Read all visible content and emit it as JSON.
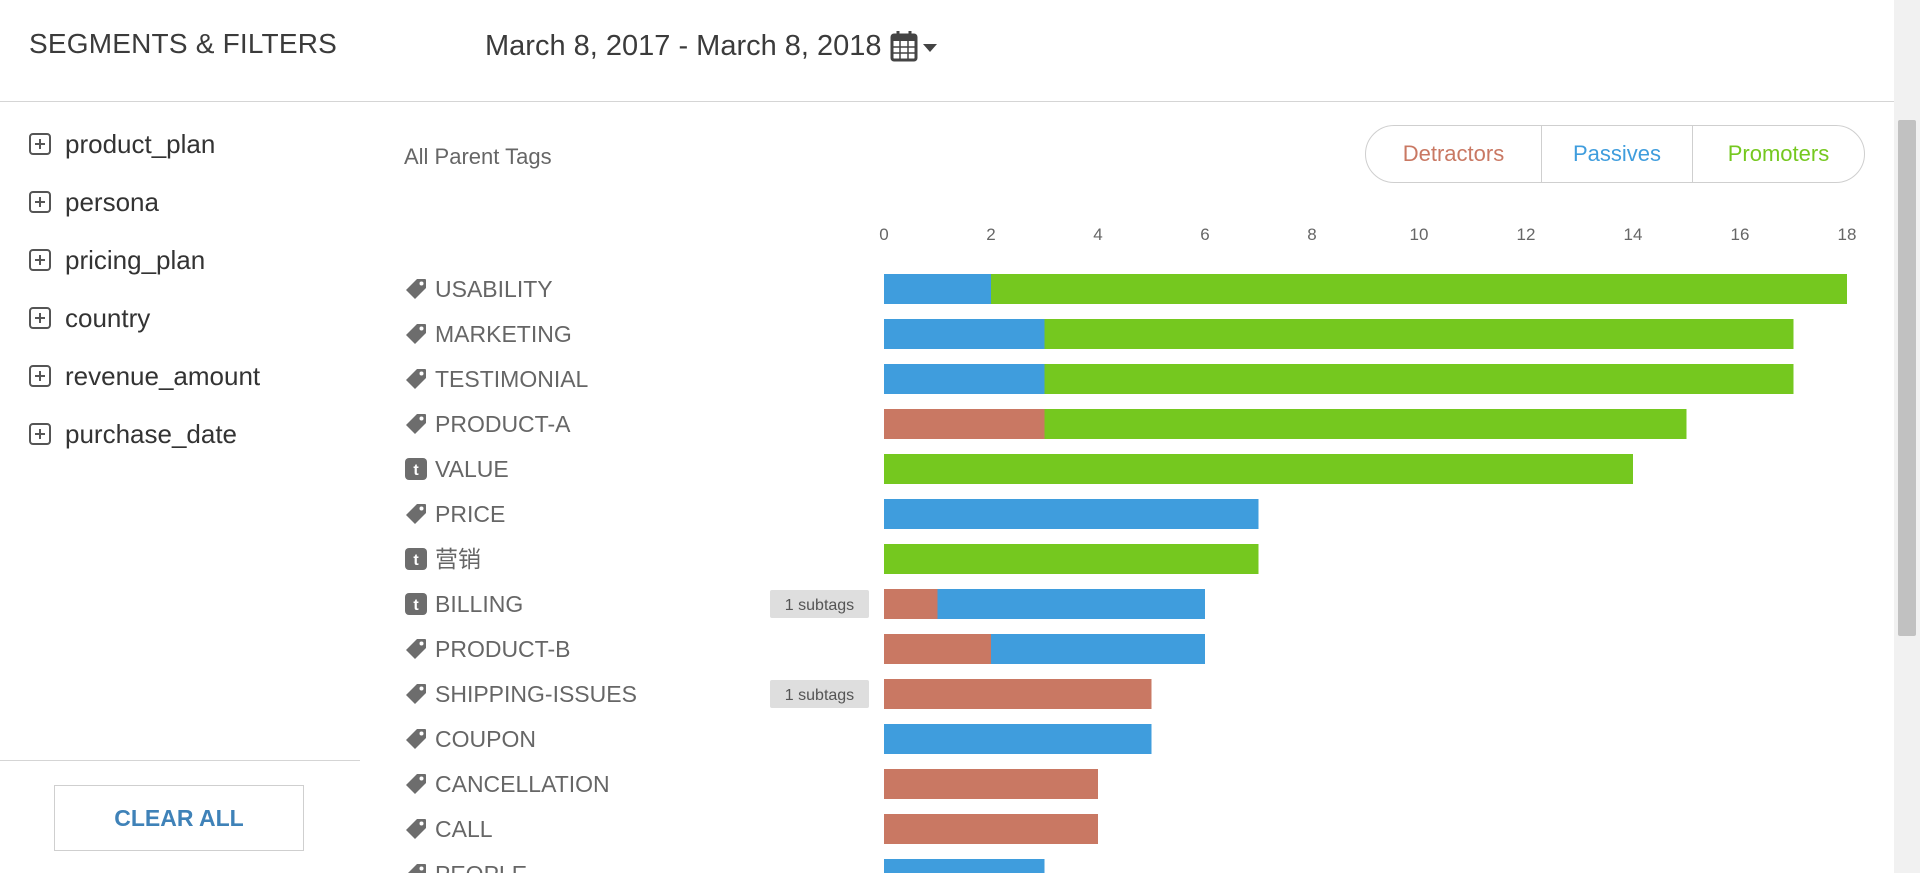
{
  "header": {
    "title": "SEGMENTS & FILTERS",
    "date_range": "March 8, 2017 - March 8, 2018",
    "calendar_icon": "calendar-icon",
    "dropdown_icon": "caret-down-icon"
  },
  "sidebar": {
    "items": [
      {
        "label": "product_plan"
      },
      {
        "label": "persona"
      },
      {
        "label": "pricing_plan"
      },
      {
        "label": "country"
      },
      {
        "label": "revenue_amount"
      },
      {
        "label": "purchase_date"
      }
    ],
    "clear_all_label": "CLEAR ALL"
  },
  "chart": {
    "heading": "All Parent Tags",
    "legend": [
      {
        "label": "Detractors",
        "color": "#c97863"
      },
      {
        "label": "Passives",
        "color": "#3f9ddd"
      },
      {
        "label": "Promoters",
        "color": "#75c81f"
      }
    ]
  },
  "chart_data": {
    "type": "bar",
    "orientation": "horizontal",
    "stacked": true,
    "axis_ticks": [
      0,
      2,
      4,
      6,
      8,
      10,
      12,
      14,
      16,
      18
    ],
    "xlim": [
      0,
      18
    ],
    "series": [
      {
        "name": "Detractors",
        "color": "#c97863"
      },
      {
        "name": "Passives",
        "color": "#3f9ddd"
      },
      {
        "name": "Promoters",
        "color": "#75c81f"
      }
    ],
    "rows": [
      {
        "label": "USABILITY",
        "icon": "tag-icon",
        "values": [
          0,
          2,
          16
        ]
      },
      {
        "label": "MARKETING",
        "icon": "tag-icon",
        "values": [
          0,
          3,
          14
        ]
      },
      {
        "label": "TESTIMONIAL",
        "icon": "tag-icon",
        "values": [
          0,
          3,
          14
        ]
      },
      {
        "label": "PRODUCT-A",
        "icon": "tag-icon",
        "values": [
          3,
          0,
          12
        ]
      },
      {
        "label": "VALUE",
        "icon": "t-badge-icon",
        "values": [
          0,
          0,
          14
        ]
      },
      {
        "label": "PRICE",
        "icon": "tag-icon",
        "values": [
          0,
          7,
          0
        ]
      },
      {
        "label": "营销",
        "icon": "t-badge-icon",
        "values": [
          0,
          0,
          7
        ]
      },
      {
        "label": "BILLING",
        "icon": "t-badge-icon",
        "values": [
          1,
          5,
          0
        ],
        "subtags": "1 subtags"
      },
      {
        "label": "PRODUCT-B",
        "icon": "tag-icon",
        "values": [
          2,
          4,
          0
        ]
      },
      {
        "label": "SHIPPING-ISSUES",
        "icon": "tag-icon",
        "values": [
          5,
          0,
          0
        ],
        "subtags": "1 subtags"
      },
      {
        "label": "COUPON",
        "icon": "tag-icon",
        "values": [
          0,
          5,
          0
        ]
      },
      {
        "label": "CANCELLATION",
        "icon": "tag-icon",
        "values": [
          4,
          0,
          0
        ]
      },
      {
        "label": "CALL",
        "icon": "tag-icon",
        "values": [
          4,
          0,
          0
        ]
      },
      {
        "label": "PEOPLE",
        "icon": "tag-icon",
        "values": [
          0,
          3,
          0
        ]
      }
    ]
  }
}
